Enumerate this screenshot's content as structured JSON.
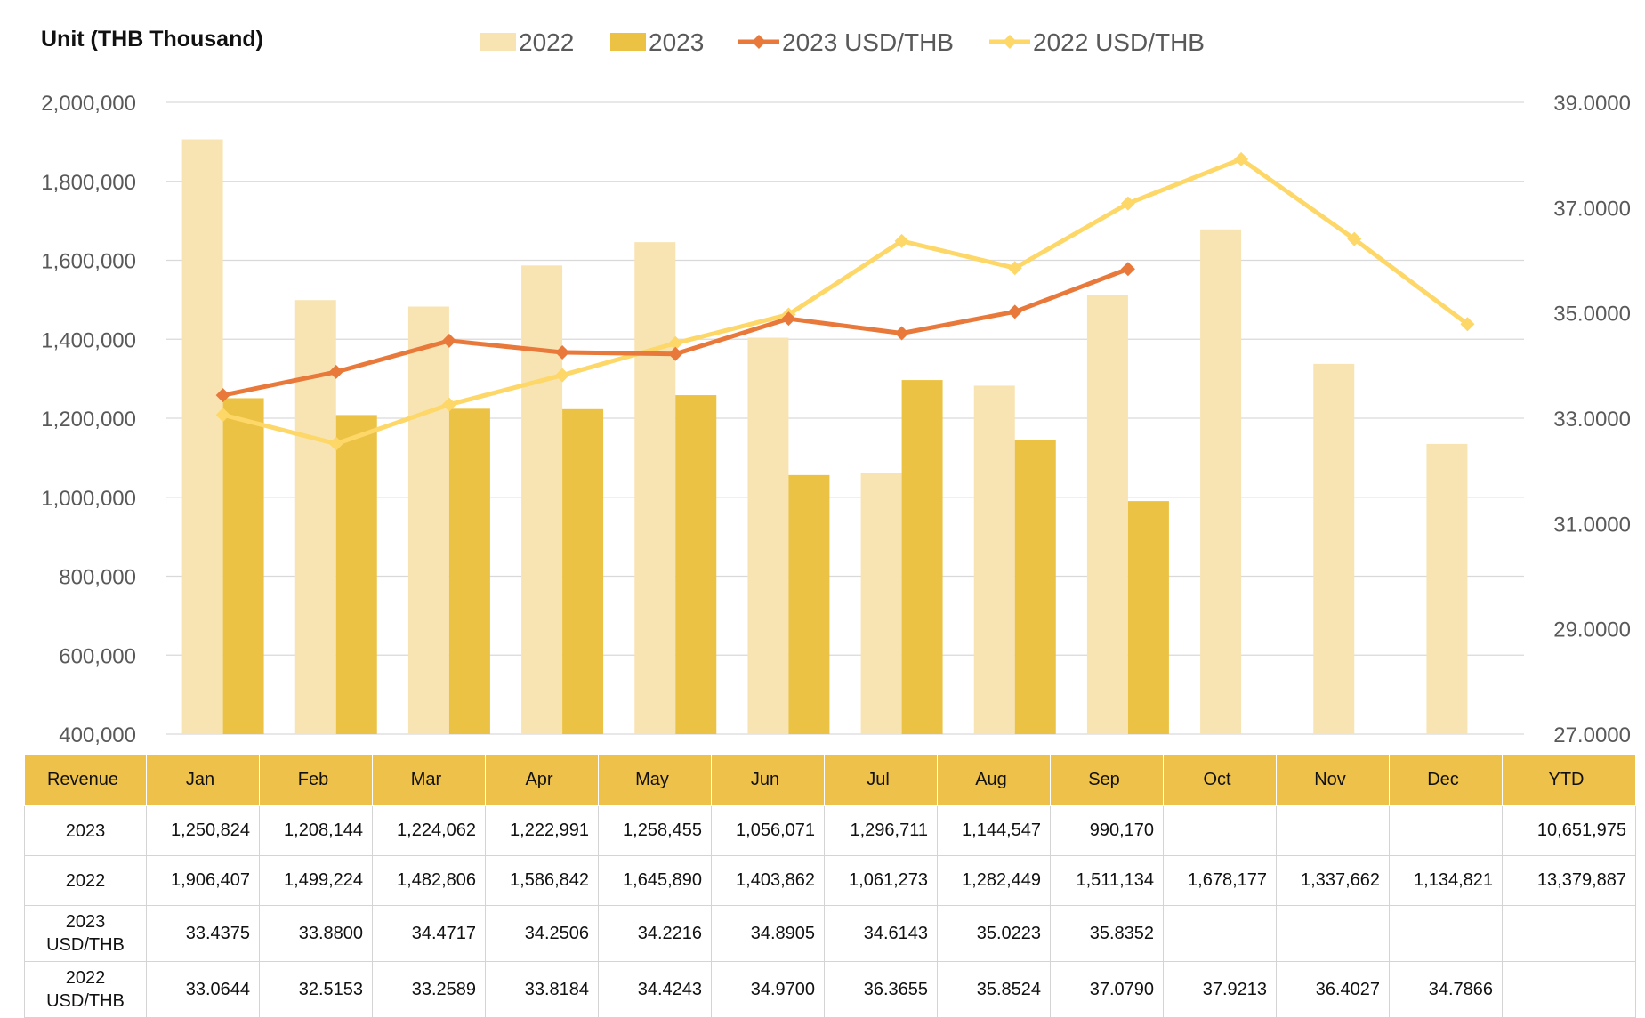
{
  "unit_label": "Unit (THB  Thousand)",
  "colors": {
    "bar_2022": "#f8e4b3",
    "bar_2023": "#ecc244",
    "line_2023_usd": "#e8793a",
    "line_2022_usd": "#fdd767",
    "header_bg": "#eec14a",
    "grid": "#d9d9d9"
  },
  "chart_data": {
    "type": "bar",
    "categories": [
      "Jan",
      "Feb",
      "Mar",
      "Apr",
      "May",
      "Jun",
      "Jul",
      "Aug",
      "Sep",
      "Oct",
      "Nov",
      "Dec"
    ],
    "series": [
      {
        "name": "2022",
        "type": "bar",
        "axis": "left",
        "values": [
          1906407,
          1499224,
          1482806,
          1586842,
          1645890,
          1403862,
          1061273,
          1282449,
          1511134,
          1678177,
          1337662,
          1134821
        ]
      },
      {
        "name": "2023",
        "type": "bar",
        "axis": "left",
        "values": [
          1250824,
          1208144,
          1224062,
          1222991,
          1258455,
          1056071,
          1296711,
          1144547,
          990170,
          null,
          null,
          null
        ]
      },
      {
        "name": "2023 USD/THB",
        "type": "line",
        "axis": "right",
        "marker": "diamond",
        "values": [
          33.4375,
          33.88,
          34.4717,
          34.2506,
          34.2216,
          34.8905,
          34.6143,
          35.0223,
          35.8352,
          null,
          null,
          null
        ]
      },
      {
        "name": "2022 USD/THB",
        "type": "line",
        "axis": "right",
        "marker": "diamond",
        "values": [
          33.0644,
          32.5153,
          33.2589,
          33.8184,
          34.4243,
          34.97,
          36.3655,
          35.8524,
          37.079,
          37.9213,
          36.4027,
          34.7866
        ]
      }
    ],
    "y_left": {
      "ylim": [
        400000,
        2000000
      ],
      "ticks": [
        "400,000",
        "600,000",
        "800,000",
        "1,000,000",
        "1,200,000",
        "1,400,000",
        "1,600,000",
        "1,800,000",
        "2,000,000"
      ]
    },
    "y_right": {
      "ylim": [
        27,
        39
      ],
      "ticks": [
        "27.0000",
        "29.0000",
        "31.0000",
        "33.0000",
        "35.0000",
        "37.0000",
        "39.0000"
      ]
    },
    "grid": true,
    "legend_position": "top"
  },
  "table": {
    "headers": [
      "Revenue",
      "Jan",
      "Feb",
      "Mar",
      "Apr",
      "May",
      "Jun",
      "Jul",
      "Aug",
      "Sep",
      "Oct",
      "Nov",
      "Dec",
      "YTD"
    ],
    "rows": [
      {
        "label": "2023",
        "cells": [
          "1,250,824",
          "1,208,144",
          "1,224,062",
          "1,222,991",
          "1,258,455",
          "1,056,071",
          "1,296,711",
          "1,144,547",
          "990,170",
          "",
          "",
          "",
          "10,651,975"
        ]
      },
      {
        "label": "2022",
        "cells": [
          "1,906,407",
          "1,499,224",
          "1,482,806",
          "1,586,842",
          "1,645,890",
          "1,403,862",
          "1,061,273",
          "1,282,449",
          "1,511,134",
          "1,678,177",
          "1,337,662",
          "1,134,821",
          "13,379,887"
        ]
      },
      {
        "label": "2023\nUSD/THB",
        "cells": [
          "33.4375",
          "33.8800",
          "34.4717",
          "34.2506",
          "34.2216",
          "34.8905",
          "34.6143",
          "35.0223",
          "35.8352",
          "",
          "",
          "",
          ""
        ]
      },
      {
        "label": "2022\nUSD/THB",
        "cells": [
          "33.0644",
          "32.5153",
          "33.2589",
          "33.8184",
          "34.4243",
          "34.9700",
          "36.3655",
          "35.8524",
          "37.0790",
          "37.9213",
          "36.4027",
          "34.7866",
          ""
        ]
      }
    ]
  }
}
